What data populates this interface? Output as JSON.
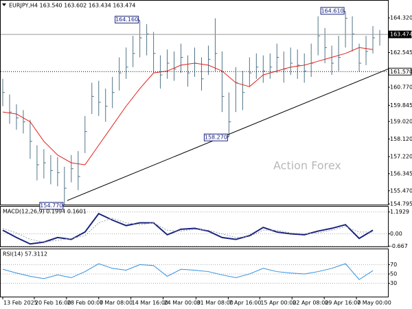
{
  "chart_data": [
    {
      "type": "ohlc",
      "title": "EURJPY,H4 163.540 163.602 163.434 163.474",
      "watermark": "Action Forex",
      "color": "#4f7388",
      "x": [
        0,
        1,
        2,
        3,
        4,
        5,
        6,
        7,
        8,
        9,
        10,
        11,
        12,
        13,
        14,
        15,
        16,
        17,
        18,
        19,
        20,
        21,
        22,
        23,
        24,
        25,
        26,
        27,
        28,
        29,
        30,
        31,
        32,
        33,
        34,
        35,
        36,
        37,
        38,
        39,
        40,
        41,
        42,
        43,
        44,
        45,
        46,
        47,
        48,
        49,
        50,
        51,
        52,
        53,
        54,
        55
      ],
      "high": [
        161.2,
        160.4,
        159.9,
        159.6,
        159.1,
        157.8,
        157.6,
        157.3,
        157.2,
        156.7,
        157.3,
        157.5,
        159.3,
        161.0,
        161.1,
        160.7,
        161.3,
        162.3,
        162.8,
        163.4,
        164.16,
        164.0,
        163.6,
        162.4,
        162.7,
        162.6,
        163.0,
        162.4,
        162.8,
        162.3,
        162.9,
        164.3,
        162.6,
        160.5,
        161.8,
        161.6,
        162.3,
        162.5,
        162.4,
        162.5,
        163.0,
        162.6,
        162.8,
        162.7,
        162.5,
        163.0,
        164.4,
        163.8,
        162.9,
        163.4,
        164.61,
        164.4,
        163.0,
        163.4,
        163.9,
        163.7
      ],
      "low": [
        159.8,
        158.9,
        158.6,
        158.4,
        157.1,
        156.0,
        156.1,
        155.8,
        155.7,
        154.77,
        155.9,
        155.5,
        157.4,
        159.4,
        159.3,
        159.0,
        159.7,
        160.6,
        161.2,
        161.8,
        162.3,
        162.4,
        161.5,
        160.7,
        161.2,
        161.1,
        161.5,
        160.8,
        161.3,
        160.6,
        161.4,
        161.6,
        159.5,
        158.27,
        159.5,
        159.6,
        160.8,
        161.2,
        161.0,
        161.2,
        161.5,
        161.0,
        161.4,
        161.2,
        161.0,
        161.3,
        162.4,
        162.0,
        161.4,
        161.6,
        162.8,
        162.6,
        161.57,
        161.9,
        162.5,
        162.9
      ],
      "close": [
        160.5,
        159.5,
        159.2,
        159.0,
        158.0,
        156.8,
        156.9,
        156.5,
        156.4,
        155.6,
        156.6,
        156.2,
        158.5,
        160.3,
        160.0,
        159.8,
        160.5,
        161.5,
        161.8,
        162.5,
        163.3,
        163.5,
        162.5,
        161.4,
        162.0,
        161.7,
        162.3,
        161.5,
        162.0,
        161.2,
        162.2,
        162.5,
        160.3,
        159.0,
        161.0,
        160.5,
        161.5,
        161.8,
        161.6,
        161.8,
        162.3,
        161.7,
        162.0,
        161.9,
        161.6,
        162.0,
        163.4,
        162.8,
        162.0,
        162.3,
        164.3,
        163.5,
        162.0,
        162.6,
        163.3,
        163.474
      ],
      "moving_average": {
        "color": "#e0201a",
        "x": [
          0,
          2,
          4,
          6,
          8,
          10,
          12,
          14,
          16,
          18,
          20,
          22,
          24,
          26,
          28,
          30,
          32,
          34,
          36,
          38,
          40,
          42,
          44,
          46,
          48,
          50,
          52,
          54
        ],
        "values": [
          159.5,
          159.4,
          159.0,
          158.0,
          157.3,
          156.9,
          156.8,
          157.8,
          158.8,
          159.8,
          160.7,
          161.5,
          161.6,
          161.9,
          162.0,
          161.9,
          161.6,
          161.0,
          160.8,
          161.4,
          161.6,
          161.8,
          161.9,
          162.1,
          162.3,
          162.5,
          162.8,
          162.7
        ]
      },
      "trendline": {
        "color": "#000000",
        "x": [
          9.4,
          56.2
        ],
        "values": [
          154.97,
          161.7
        ]
      },
      "annotations": [
        {
          "x": 20,
          "value": 164.16,
          "label": "164.160"
        },
        {
          "x": 50,
          "value": 164.61,
          "label": "164.610"
        },
        {
          "x": 33,
          "value": 158.27,
          "label": "158.270"
        },
        {
          "x": 9,
          "value": 154.77,
          "label": "154.770"
        }
      ],
      "price_lines": [
        {
          "value": 163.474,
          "label": "163.474",
          "style": "solid"
        },
        {
          "value": 161.57,
          "label": "161.570",
          "style": "dotted"
        }
      ],
      "xlim": [
        -0.3,
        56.2
      ],
      "ylim": [
        154.76,
        165.2
      ],
      "yticks": [
        {
          "value": 164.32,
          "label": "164.320"
        },
        {
          "value": 162.545,
          "label": "162.545"
        },
        {
          "value": 160.77,
          "label": "160.770"
        },
        {
          "value": 159.845,
          "label": "159.845"
        },
        {
          "value": 159.02,
          "label": "159.020"
        },
        {
          "value": 158.12,
          "label": "158.120"
        },
        {
          "value": 157.22,
          "label": "157.220"
        },
        {
          "value": 156.345,
          "label": "156.345"
        },
        {
          "value": 155.47,
          "label": "155.470"
        },
        {
          "value": 154.795,
          "label": "154.795"
        }
      ],
      "xticks": [
        {
          "value": 0,
          "label": "13 Feb 2025"
        },
        {
          "value": 4.6,
          "label": "20 Feb 16:00"
        },
        {
          "value": 9.3,
          "label": "28 Feb 00:00"
        },
        {
          "value": 14,
          "label": "7 Mar 08:00"
        },
        {
          "value": 18.7,
          "label": "14 Mar 16:00"
        },
        {
          "value": 23.4,
          "label": "24 Mar 00:00"
        },
        {
          "value": 28.2,
          "label": "31 Mar 08:00"
        },
        {
          "value": 32.9,
          "label": "7 Apr 16:00"
        },
        {
          "value": 37.5,
          "label": "15 Apr 00:00"
        },
        {
          "value": 42.2,
          "label": "22 Apr 08:00"
        },
        {
          "value": 46.9,
          "label": "29 Apr 16:00"
        },
        {
          "value": 51.6,
          "label": "7 May 00:00"
        }
      ]
    },
    {
      "type": "line",
      "title": "MACD(12,26,9) 0.1994 0.1601",
      "ylim": [
        -0.69,
        1.48
      ],
      "yticks": [
        1.1929,
        {
          "value": 0,
          "label": "0.00"
        },
        -0.667
      ],
      "x": [
        0,
        2,
        4,
        6,
        8,
        10,
        12,
        14,
        16,
        18,
        20,
        22,
        24,
        26,
        28,
        30,
        32,
        34,
        36,
        38,
        40,
        42,
        44,
        46,
        48,
        50,
        52,
        54
      ],
      "series": [
        {
          "color": "#1a237e",
          "width": 2,
          "style": "solid",
          "values": [
            0.2,
            -0.2,
            -0.55,
            -0.45,
            -0.2,
            -0.3,
            0.1,
            1.1,
            0.75,
            0.45,
            0.6,
            0.6,
            -0.05,
            0.25,
            0.3,
            0.15,
            -0.2,
            -0.3,
            -0.1,
            0.35,
            0.1,
            0.0,
            -0.05,
            0.15,
            0.3,
            0.5,
            -0.25,
            0.2
          ]
        },
        {
          "color": "#9aa0a6",
          "width": 1,
          "style": "dotted",
          "values": [
            0.3,
            0.05,
            -0.3,
            -0.45,
            -0.35,
            -0.25,
            -0.1,
            0.6,
            0.85,
            0.6,
            0.5,
            0.6,
            0.2,
            0.15,
            0.25,
            0.2,
            0.0,
            -0.2,
            -0.15,
            0.2,
            0.2,
            0.05,
            0.0,
            0.05,
            0.2,
            0.4,
            0.1,
            0.1
          ]
        }
      ]
    },
    {
      "type": "line",
      "title": "RSI(14) 57.3112",
      "ylim": [
        1.4,
        102.9
      ],
      "yticks": [
        70,
        50,
        30
      ],
      "x": [
        0,
        2,
        4,
        6,
        8,
        10,
        12,
        14,
        16,
        18,
        20,
        22,
        24,
        26,
        28,
        30,
        32,
        34,
        36,
        38,
        40,
        42,
        44,
        46,
        48,
        50,
        52,
        54
      ],
      "series": [
        {
          "color": "#2e8fe0",
          "width": 1,
          "style": "solid",
          "values": [
            60,
            52,
            45,
            40,
            48,
            42,
            55,
            72,
            62,
            58,
            70,
            68,
            45,
            60,
            58,
            55,
            48,
            42,
            50,
            62,
            55,
            52,
            50,
            55,
            62,
            72,
            38,
            57
          ]
        }
      ]
    }
  ]
}
